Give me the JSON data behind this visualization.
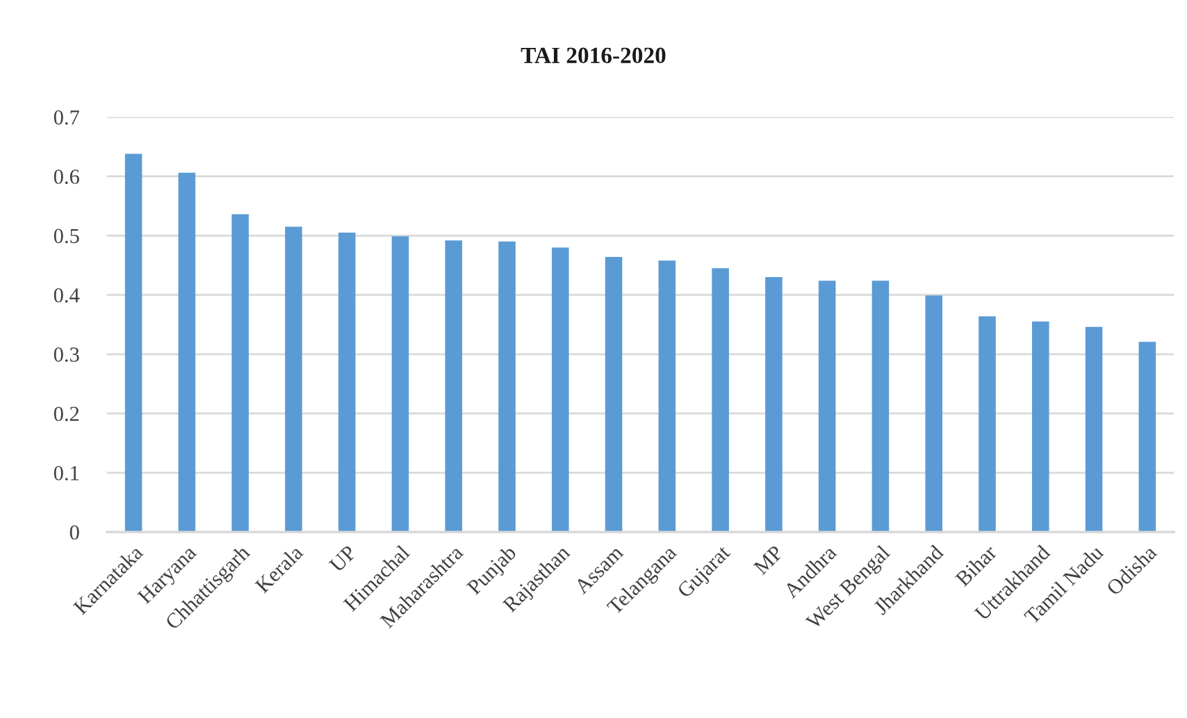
{
  "chart_data": {
    "type": "bar",
    "title": "TAI 2016-2020",
    "categories": [
      "Karnataka",
      "Haryana",
      "Chhattisgarh",
      "Kerala",
      "UP",
      "Himachal",
      "Maharashtra",
      "Punjab",
      "Rajasthan",
      "Assam",
      "Telangana",
      "Gujarat",
      "MP",
      "Andhra",
      "West Bengal",
      "Jharkhand",
      "Bihar",
      "Uttrakhand",
      "Tamil Nadu",
      "Odisha"
    ],
    "values": [
      0.638,
      0.606,
      0.536,
      0.515,
      0.505,
      0.499,
      0.492,
      0.49,
      0.48,
      0.464,
      0.458,
      0.445,
      0.43,
      0.424,
      0.424,
      0.399,
      0.364,
      0.355,
      0.346,
      0.321
    ],
    "color": "#5b9bd5",
    "ylim": [
      0,
      0.7
    ],
    "yticks": [
      0,
      0.1,
      0.2,
      0.3,
      0.4,
      0.5,
      0.6,
      0.7
    ],
    "grid": "y"
  }
}
